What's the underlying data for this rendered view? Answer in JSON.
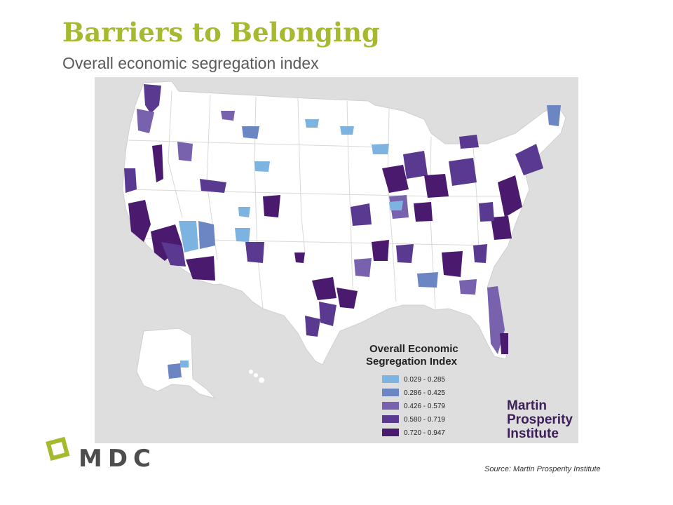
{
  "slide": {
    "title": "Barriers to Belonging",
    "subtitle": "Overall economic segregation index",
    "source": "Source: Martin Prosperity Institute",
    "logo_text": "MDC"
  },
  "map": {
    "region": "United States metropolitan areas",
    "legend": {
      "title_line1": "Overall Economic",
      "title_line2": "Segregation Index",
      "items": [
        {
          "label": "0.029 - 0.285",
          "color": "#7cb3e0"
        },
        {
          "label": "0.286 - 0.425",
          "color": "#6c86c4"
        },
        {
          "label": "0.426 - 0.579",
          "color": "#7861ad"
        },
        {
          "label": "0.580 - 0.719",
          "color": "#5a3990"
        },
        {
          "label": "0.720 - 0.947",
          "color": "#4a1a6e"
        }
      ]
    },
    "branding": {
      "line1": "Martin",
      "line2": "Prosperity",
      "line3": "Institute"
    }
  },
  "colors": {
    "title": "#a7b92e",
    "logo_mark": "#a7b92e",
    "land": "#ffffff",
    "water": "#dedede"
  }
}
